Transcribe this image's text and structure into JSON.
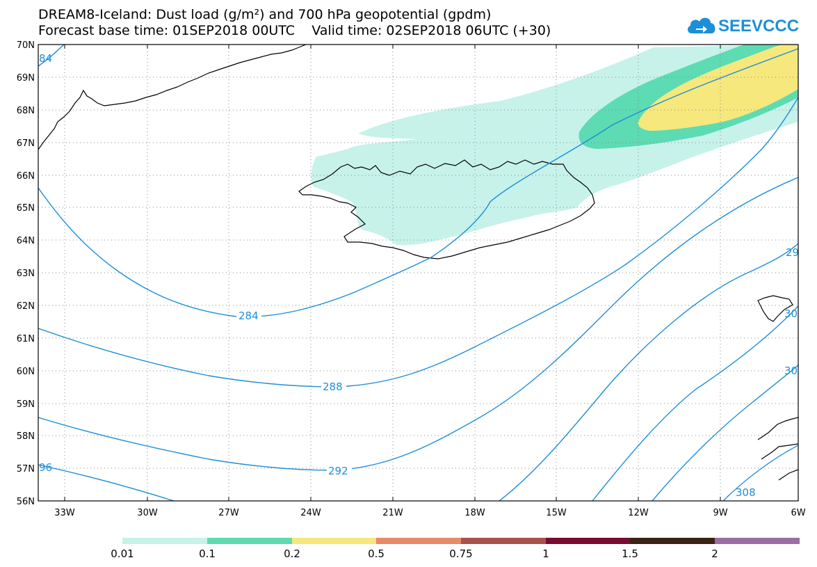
{
  "header": {
    "title_line1": "DREAM8-Iceland: Dust load (g/m²) and 700 hPa geopotential (gpdm)",
    "title_line2": "Forecast base time: 01SEP2018 00UTC    Valid time: 02SEP2018 06UTC (+30)"
  },
  "logo": {
    "text": "SEEVCCC",
    "icon": "cloud-icon",
    "color": "#1d8fd8"
  },
  "map": {
    "lat_labels": [
      "70N",
      "69N",
      "68N",
      "67N",
      "66N",
      "65N",
      "64N",
      "63N",
      "62N",
      "61N",
      "60N",
      "59N",
      "58N",
      "57N",
      "56N"
    ],
    "lon_labels": [
      "33W",
      "30W",
      "27W",
      "24W",
      "21W",
      "18W",
      "15W",
      "12W",
      "9W",
      "6W"
    ],
    "contour_labels": [
      "84",
      "284",
      "288",
      "292",
      "96",
      "29",
      "30",
      "30",
      "308"
    ],
    "contour_color": "#1d8fd8",
    "dust_colors": {
      "c1": "#c6f2ea",
      "c2": "#5ddbb3",
      "c3": "#f6e87c"
    }
  },
  "colorbar": {
    "labels": [
      "0.01",
      "0.1",
      "0.2",
      "0.5",
      "0.75",
      "1",
      "1.5",
      "2"
    ],
    "colors": [
      "#c6f2ea",
      "#5ddbb3",
      "#f6e87c",
      "#e8896a",
      "#a8524a",
      "#7a0b2f",
      "#3d2314",
      "#9b6ea1"
    ]
  }
}
